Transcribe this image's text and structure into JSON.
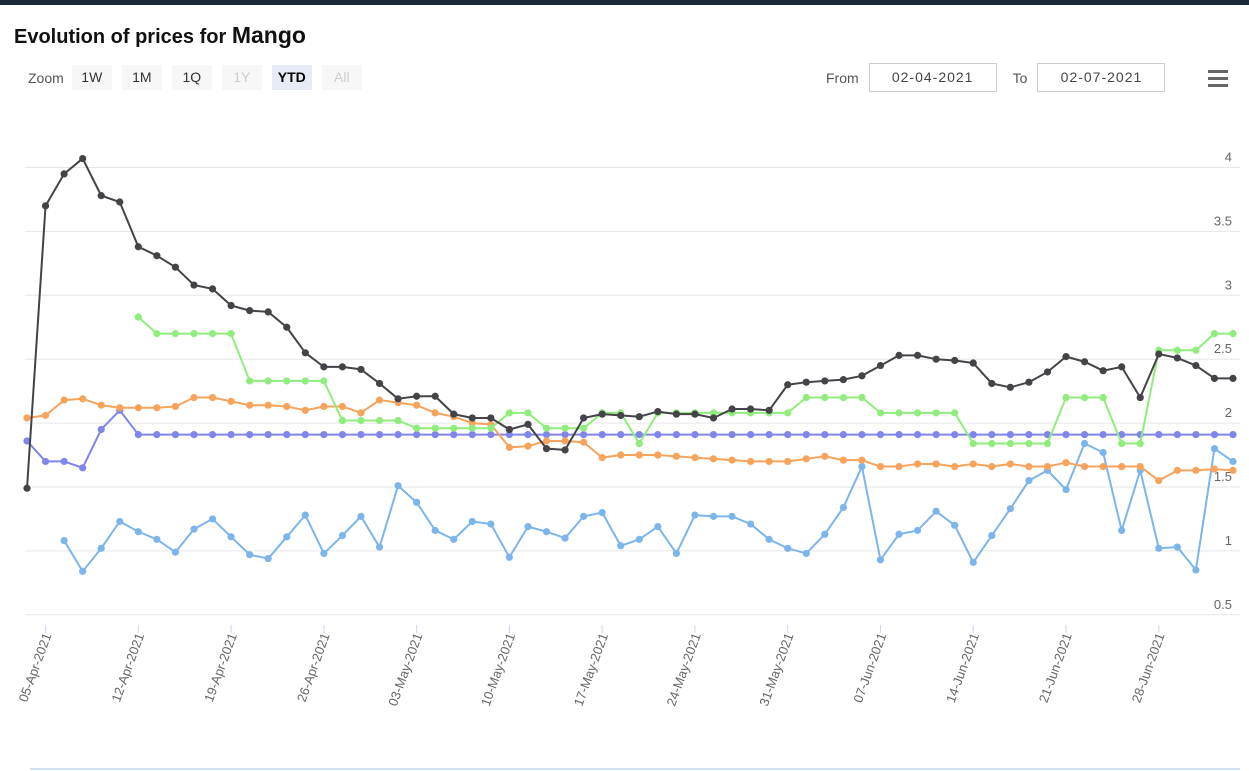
{
  "chart_data": {
    "type": "line",
    "title": "Evolution of prices for",
    "title_product": "Mango",
    "zoom_label": "Zoom",
    "zoom_buttons": [
      "1W",
      "1M",
      "1Q",
      "1Y",
      "YTD",
      "All"
    ],
    "zoom_selected": "YTD",
    "zoom_disabled": [
      "1Y",
      "All"
    ],
    "from_label": "From",
    "from_date": "02-04-2021",
    "to_label": "To",
    "to_date": "02-07-2021",
    "x": [
      "02-Apr-2021",
      "05-Apr-2021",
      "06-Apr-2021",
      "07-Apr-2021",
      "08-Apr-2021",
      "09-Apr-2021",
      "12-Apr-2021",
      "13-Apr-2021",
      "14-Apr-2021",
      "15-Apr-2021",
      "16-Apr-2021",
      "19-Apr-2021",
      "20-Apr-2021",
      "21-Apr-2021",
      "22-Apr-2021",
      "23-Apr-2021",
      "26-Apr-2021",
      "27-Apr-2021",
      "28-Apr-2021",
      "29-Apr-2021",
      "30-Apr-2021",
      "03-May-2021",
      "04-May-2021",
      "05-May-2021",
      "06-May-2021",
      "07-May-2021",
      "10-May-2021",
      "11-May-2021",
      "12-May-2021",
      "13-May-2021",
      "14-May-2021",
      "17-May-2021",
      "18-May-2021",
      "19-May-2021",
      "20-May-2021",
      "21-May-2021",
      "24-May-2021",
      "25-May-2021",
      "26-May-2021",
      "27-May-2021",
      "28-May-2021",
      "31-May-2021",
      "01-Jun-2021",
      "02-Jun-2021",
      "03-Jun-2021",
      "04-Jun-2021",
      "07-Jun-2021",
      "08-Jun-2021",
      "09-Jun-2021",
      "10-Jun-2021",
      "11-Jun-2021",
      "14-Jun-2021",
      "15-Jun-2021",
      "16-Jun-2021",
      "17-Jun-2021",
      "18-Jun-2021",
      "21-Jun-2021",
      "22-Jun-2021",
      "23-Jun-2021",
      "24-Jun-2021",
      "25-Jun-2021",
      "28-Jun-2021",
      "29-Jun-2021",
      "30-Jun-2021",
      "01-Jul-2021",
      "02-Jul-2021"
    ],
    "xticks": [
      "05-Apr-2021",
      "12-Apr-2021",
      "19-Apr-2021",
      "26-Apr-2021",
      "03-May-2021",
      "10-May-2021",
      "17-May-2021",
      "24-May-2021",
      "31-May-2021",
      "07-Jun-2021",
      "14-Jun-2021",
      "21-Jun-2021",
      "28-Jun-2021"
    ],
    "ylim": [
      0.42,
      4.45
    ],
    "yticks": [
      0.5,
      1,
      1.5,
      2,
      2.5,
      3,
      3.5,
      4
    ],
    "grid": true,
    "series": [
      {
        "color": "#7cb5ec",
        "values": [
          null,
          null,
          1.08,
          0.84,
          1.02,
          1.23,
          1.15,
          1.09,
          0.99,
          1.17,
          1.25,
          1.11,
          0.97,
          0.94,
          1.11,
          1.28,
          0.98,
          1.12,
          1.27,
          1.03,
          1.51,
          1.38,
          1.16,
          1.09,
          1.23,
          1.21,
          0.95,
          1.19,
          1.15,
          1.1,
          1.27,
          1.3,
          1.04,
          1.09,
          1.19,
          0.98,
          1.28,
          1.27,
          1.27,
          1.21,
          1.09,
          1.02,
          0.98,
          1.13,
          1.34,
          1.66,
          0.93,
          1.13,
          1.16,
          1.31,
          1.2,
          0.91,
          1.12,
          1.33,
          1.55,
          1.63,
          1.48,
          1.84,
          1.77,
          1.16,
          1.63,
          1.02,
          1.03,
          0.85,
          1.8,
          1.7
        ]
      },
      {
        "color": "#8085e9",
        "values": [
          1.86,
          1.7,
          1.7,
          1.65,
          1.95,
          2.1,
          1.91,
          1.91,
          1.91,
          1.91,
          1.91,
          1.91,
          1.91,
          1.91,
          1.91,
          1.91,
          1.91,
          1.91,
          1.91,
          1.91,
          1.91,
          1.91,
          1.91,
          1.91,
          1.91,
          1.91,
          1.91,
          1.91,
          1.91,
          1.91,
          1.91,
          1.91,
          1.91,
          1.91,
          1.91,
          1.91,
          1.91,
          1.91,
          1.91,
          1.91,
          1.91,
          1.91,
          1.91,
          1.91,
          1.91,
          1.91,
          1.91,
          1.91,
          1.91,
          1.91,
          1.91,
          1.91,
          1.91,
          1.91,
          1.91,
          1.91,
          1.91,
          1.91,
          1.91,
          1.91,
          1.91,
          1.91,
          1.91,
          1.91,
          1.91,
          1.91
        ]
      },
      {
        "color": "#f7a35c",
        "values": [
          2.04,
          2.06,
          2.18,
          2.19,
          2.14,
          2.12,
          2.12,
          2.12,
          2.13,
          2.2,
          2.2,
          2.17,
          2.14,
          2.14,
          2.13,
          2.1,
          2.13,
          2.13,
          2.08,
          2.18,
          2.16,
          2.14,
          2.08,
          2.05,
          2.0,
          1.99,
          1.81,
          1.82,
          1.86,
          1.86,
          1.85,
          1.73,
          1.75,
          1.75,
          1.75,
          1.74,
          1.73,
          1.72,
          1.71,
          1.7,
          1.7,
          1.7,
          1.72,
          1.74,
          1.71,
          1.71,
          1.66,
          1.66,
          1.68,
          1.68,
          1.66,
          1.68,
          1.66,
          1.68,
          1.66,
          1.66,
          1.69,
          1.66,
          1.66,
          1.66,
          1.66,
          1.55,
          1.63,
          1.63,
          1.64,
          1.63
        ]
      },
      {
        "color": "#90ed7d",
        "values": [
          null,
          null,
          null,
          null,
          null,
          null,
          2.83,
          2.7,
          2.7,
          2.7,
          2.7,
          2.7,
          2.33,
          2.33,
          2.33,
          2.33,
          2.33,
          2.02,
          2.02,
          2.02,
          2.02,
          1.96,
          1.96,
          1.96,
          1.96,
          1.96,
          2.08,
          2.08,
          1.96,
          1.96,
          1.96,
          2.08,
          2.08,
          1.84,
          2.08,
          2.08,
          2.08,
          2.08,
          2.08,
          2.08,
          2.08,
          2.08,
          2.2,
          2.2,
          2.2,
          2.2,
          2.08,
          2.08,
          2.08,
          2.08,
          2.08,
          1.84,
          1.84,
          1.84,
          1.84,
          1.84,
          2.2,
          2.2,
          2.2,
          1.84,
          1.84,
          2.57,
          2.57,
          2.57,
          2.7,
          2.7
        ]
      },
      {
        "color": "#434348",
        "values": [
          1.49,
          3.7,
          3.95,
          4.07,
          3.78,
          3.73,
          3.38,
          3.31,
          3.22,
          3.08,
          3.05,
          2.92,
          2.88,
          2.87,
          2.75,
          2.55,
          2.44,
          2.44,
          2.42,
          2.31,
          2.19,
          2.21,
          2.21,
          2.07,
          2.04,
          2.04,
          1.95,
          1.99,
          1.8,
          1.79,
          2.04,
          2.07,
          2.06,
          2.05,
          2.09,
          2.07,
          2.07,
          2.04,
          2.11,
          2.11,
          2.1,
          2.3,
          2.32,
          2.33,
          2.34,
          2.37,
          2.45,
          2.53,
          2.53,
          2.5,
          2.49,
          2.47,
          2.31,
          2.28,
          2.32,
          2.4,
          2.52,
          2.48,
          2.41,
          2.44,
          2.2,
          2.54,
          2.51,
          2.45,
          2.35,
          2.35
        ]
      }
    ]
  }
}
